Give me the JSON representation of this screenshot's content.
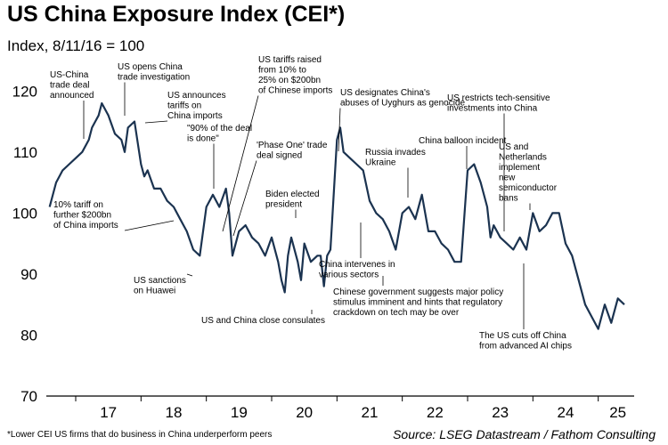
{
  "chart_data": {
    "type": "line",
    "title": "US China Exposure Index (CEI*)",
    "subtitle": "Index, 8/11/16 = 100",
    "footnote": "*Lower CEI US firms that do business in China underperform peers",
    "source": "Source: LSEG Datastream / Fathom Consulting",
    "ylim": [
      70,
      125
    ],
    "yticks": [
      70,
      80,
      90,
      100,
      110,
      120
    ],
    "xlim": [
      2016.55,
      2025.55
    ],
    "xticks": [
      {
        "label": "17",
        "value": 2017.5
      },
      {
        "label": "18",
        "value": 2018.5
      },
      {
        "label": "19",
        "value": 2019.5
      },
      {
        "label": "20",
        "value": 2020.5
      },
      {
        "label": "21",
        "value": 2021.5
      },
      {
        "label": "22",
        "value": 2022.5
      },
      {
        "label": "23",
        "value": 2023.5
      },
      {
        "label": "24",
        "value": 2024.5
      },
      {
        "label": "25",
        "value": 2025.3
      }
    ],
    "year_boundaries": [
      2017,
      2018,
      2019,
      2020,
      2021,
      2022,
      2023,
      2024,
      2025
    ],
    "grid": false,
    "color": "#1b3350",
    "series": [
      {
        "x": [
          2016.6,
          2016.7,
          2016.8,
          2016.9,
          2017.0,
          2017.1,
          2017.2,
          2017.25,
          2017.3,
          2017.35,
          2017.4,
          2017.5,
          2017.6,
          2017.7,
          2017.75,
          2017.8,
          2017.9,
          2018.0,
          2018.05,
          2018.1,
          2018.2,
          2018.3,
          2018.4,
          2018.5,
          2018.6,
          2018.7,
          2018.8,
          2018.9,
          2019.0,
          2019.1,
          2019.2,
          2019.3,
          2019.35,
          2019.4,
          2019.5,
          2019.6,
          2019.7,
          2019.8,
          2019.9,
          2020.0,
          2020.1,
          2020.15,
          2020.2,
          2020.25,
          2020.3,
          2020.4,
          2020.45,
          2020.5,
          2020.6,
          2020.7,
          2020.75,
          2020.8,
          2020.85,
          2020.9,
          2021.0,
          2021.05,
          2021.1,
          2021.2,
          2021.3,
          2021.4,
          2021.5,
          2021.6,
          2021.7,
          2021.8,
          2021.9,
          2022.0,
          2022.1,
          2022.2,
          2022.3,
          2022.4,
          2022.5,
          2022.6,
          2022.7,
          2022.8,
          2022.9,
          2023.0,
          2023.1,
          2023.2,
          2023.3,
          2023.35,
          2023.4,
          2023.5,
          2023.6,
          2023.7,
          2023.8,
          2023.9,
          2024.0,
          2024.1,
          2024.2,
          2024.3,
          2024.4,
          2024.5,
          2024.6,
          2024.7,
          2024.8,
          2024.9,
          2025.0,
          2025.1,
          2025.2,
          2025.3,
          2025.4
        ],
        "y": [
          101,
          105,
          107,
          108,
          109,
          110,
          112,
          114,
          115,
          116,
          118,
          116,
          113,
          112,
          110,
          114,
          115,
          108,
          106,
          107,
          104,
          104,
          102,
          101,
          99,
          97,
          94,
          93,
          101,
          103,
          101,
          104,
          100,
          93,
          97,
          98,
          96,
          95,
          93,
          96,
          92,
          89,
          87,
          93,
          96,
          92,
          89,
          95,
          92,
          93,
          93,
          88,
          93,
          94,
          112,
          114,
          110,
          109,
          108,
          107,
          102,
          100,
          99,
          97,
          94,
          100,
          101,
          99,
          103,
          97,
          97,
          95,
          94,
          92,
          92,
          107,
          108,
          105,
          101,
          96,
          98,
          96,
          95,
          94,
          96,
          94,
          100,
          97,
          98,
          100,
          100,
          95,
          93,
          89,
          85,
          83,
          81,
          85,
          82,
          86,
          85
        ]
      }
    ],
    "annotations": [
      {
        "lines": [
          "US-China",
          "trade deal",
          "announced"
        ],
        "x": 2017.3,
        "y": 114
      },
      {
        "lines": [
          "US opens China",
          "trade investigation"
        ],
        "x": 2017.6,
        "y": 117
      },
      {
        "lines": [
          "US announces",
          "tariffs on",
          "China imports"
        ],
        "x": 2018.0,
        "y": 115
      },
      {
        "lines": [
          "\"90% of the deal",
          "is done\""
        ],
        "x": 2019.45,
        "y": 104
      },
      {
        "lines": [
          "US tariffs raised",
          "from 10% to",
          "25% on $200bn",
          "of Chinese imports"
        ],
        "x": 2019.35,
        "y": 99
      },
      {
        "lines": [
          "'Phase One' trade",
          "deal signed"
        ],
        "x": 2020.0,
        "y": 96
      },
      {
        "lines": [
          "US designates China's",
          "abuses of Uyghurs as genocide"
        ],
        "x": 2021.05,
        "y": 112
      },
      {
        "lines": [
          "US restricts tech-sensitive",
          "investments into China"
        ],
        "x": 2023.3,
        "y": 97
      },
      {
        "lines": [
          "China balloon incident"
        ],
        "x": 2023.05,
        "y": 107
      },
      {
        "lines": [
          "US and",
          "Netherlands",
          "implement",
          "new",
          "semiconductor",
          "bans"
        ],
        "x": 2023.75,
        "y": 96
      },
      {
        "lines": [
          "Russia invades",
          "Ukraine"
        ],
        "x": 2022.1,
        "y": 101
      },
      {
        "lines": [
          "Biden elected",
          "president"
        ],
        "x": 2020.85,
        "y": 94
      },
      {
        "lines": [
          "10% tariff on",
          "further $200bn",
          "of China imports"
        ],
        "x": 2018.7,
        "y": 100
      },
      {
        "lines": [
          "US sanctions",
          "on Huawei"
        ],
        "x": 2019.4,
        "y": 97
      },
      {
        "lines": [
          "US and China close consulates"
        ],
        "x": 2020.55,
        "y": 87
      },
      {
        "lines": [
          "China intervenes in",
          "various sectors"
        ],
        "x": 2021.55,
        "y": 101
      },
      {
        "lines": [
          "Chinese government suggests major policy",
          "stimulus imminent and hints that regulatory",
          "crackdown on tech may be over"
        ],
        "x": 2022.15,
        "y": 98
      },
      {
        "lines": [
          "The US cuts off China",
          "from advanced AI chips"
        ],
        "x": 2023.75,
        "y": 93
      }
    ]
  }
}
